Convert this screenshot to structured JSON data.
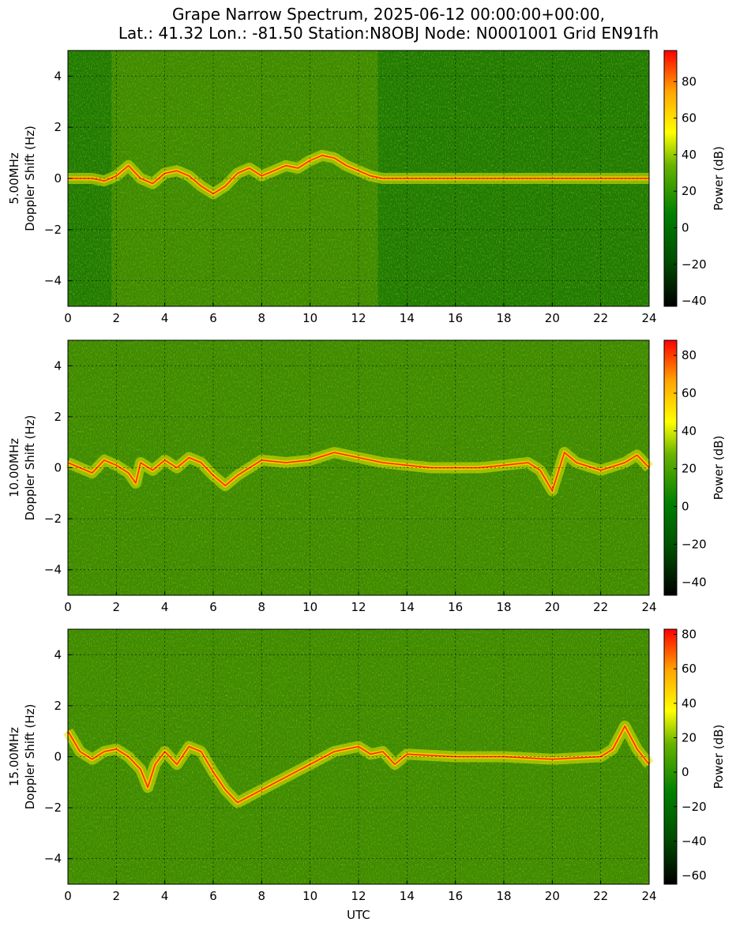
{
  "chart_data": {
    "type": "heatmap",
    "title_line1": "Grape Narrow Spectrum, 2025-06-12 00:00:00+00:00,",
    "title_line2": "Lat.: 41.32 Lon.: -81.50 Station:N8OBJ Node: N0001001 Grid EN91fh",
    "xlabel": "UTC",
    "xlim": [
      0,
      24
    ],
    "ylim": [
      -5,
      5
    ],
    "x_ticks": [
      0,
      2,
      4,
      6,
      8,
      10,
      12,
      14,
      16,
      18,
      20,
      22,
      24
    ],
    "y_ticks": [
      -4,
      -2,
      0,
      2,
      4
    ],
    "grid": true,
    "colormap": {
      "name": "black-green-yellow-red",
      "stops": [
        "#000000",
        "#006400",
        "#008000",
        "#9acd32",
        "#ffff00",
        "#ffa500",
        "#ff0000"
      ]
    },
    "colorbar_label": "Power (dB)",
    "panels": [
      {
        "ylabel_line1": "5.00MHz",
        "ylabel_line2": "Doppler Shift (Hz)",
        "colorbar_range": [
          -43,
          97
        ],
        "colorbar_ticks": [
          -40,
          -20,
          0,
          20,
          40,
          60,
          80
        ],
        "trace": [
          [
            0,
            0
          ],
          [
            1,
            0
          ],
          [
            1.5,
            -0.1
          ],
          [
            2,
            0.1
          ],
          [
            2.5,
            0.5
          ],
          [
            3,
            0
          ],
          [
            3.5,
            -0.2
          ],
          [
            4,
            0.2
          ],
          [
            4.5,
            0.3
          ],
          [
            5,
            0.1
          ],
          [
            5.5,
            -0.3
          ],
          [
            6,
            -0.6
          ],
          [
            6.5,
            -0.3
          ],
          [
            7,
            0.2
          ],
          [
            7.5,
            0.4
          ],
          [
            8,
            0.1
          ],
          [
            8.5,
            0.3
          ],
          [
            9,
            0.5
          ],
          [
            9.5,
            0.4
          ],
          [
            10,
            0.7
          ],
          [
            10.5,
            0.9
          ],
          [
            11,
            0.8
          ],
          [
            11.5,
            0.5
          ],
          [
            12,
            0.3
          ],
          [
            12.5,
            0.1
          ],
          [
            13,
            0
          ],
          [
            24,
            0
          ]
        ],
        "active_band": [
          1.8,
          12.8
        ]
      },
      {
        "ylabel_line1": "10.00MHz",
        "ylabel_line2": "Doppler Shift (Hz)",
        "colorbar_range": [
          -47,
          88
        ],
        "colorbar_ticks": [
          -40,
          -20,
          0,
          20,
          40,
          60,
          80
        ],
        "trace": [
          [
            0,
            0.2
          ],
          [
            0.5,
            0
          ],
          [
            1,
            -0.2
          ],
          [
            1.5,
            0.3
          ],
          [
            2,
            0.1
          ],
          [
            2.5,
            -0.2
          ],
          [
            2.8,
            -0.6
          ],
          [
            3,
            0.2
          ],
          [
            3.5,
            -0.1
          ],
          [
            4,
            0.3
          ],
          [
            4.5,
            0
          ],
          [
            5,
            0.4
          ],
          [
            5.5,
            0.2
          ],
          [
            6,
            -0.3
          ],
          [
            6.5,
            -0.7
          ],
          [
            7,
            -0.3
          ],
          [
            8,
            0.3
          ],
          [
            9,
            0.2
          ],
          [
            10,
            0.3
          ],
          [
            11,
            0.6
          ],
          [
            12,
            0.4
          ],
          [
            13,
            0.2
          ],
          [
            14,
            0.1
          ],
          [
            15,
            0
          ],
          [
            17,
            0
          ],
          [
            18,
            0.1
          ],
          [
            19,
            0.2
          ],
          [
            19.5,
            -0.1
          ],
          [
            20,
            -0.9
          ],
          [
            20.5,
            0.6
          ],
          [
            21,
            0.2
          ],
          [
            22,
            -0.1
          ],
          [
            23,
            0.2
          ],
          [
            23.5,
            0.5
          ],
          [
            24,
            0
          ]
        ],
        "active_band": [
          0,
          24
        ]
      },
      {
        "ylabel_line1": "15.00MHz",
        "ylabel_line2": "Doppler Shift (Hz)",
        "colorbar_range": [
          -65,
          83
        ],
        "colorbar_ticks": [
          -60,
          -40,
          -20,
          0,
          20,
          40,
          60,
          80
        ],
        "trace": [
          [
            0,
            1
          ],
          [
            0.5,
            0.2
          ],
          [
            1,
            -0.1
          ],
          [
            1.5,
            0.2
          ],
          [
            2,
            0.3
          ],
          [
            2.5,
            0
          ],
          [
            3,
            -0.5
          ],
          [
            3.3,
            -1.2
          ],
          [
            3.6,
            -0.3
          ],
          [
            4,
            0.2
          ],
          [
            4.5,
            -0.3
          ],
          [
            5,
            0.4
          ],
          [
            5.5,
            0.2
          ],
          [
            6,
            -0.6
          ],
          [
            6.5,
            -1.3
          ],
          [
            7,
            -1.8
          ],
          [
            11,
            0.2
          ],
          [
            12,
            0.4
          ],
          [
            12.5,
            0.1
          ],
          [
            13,
            0.2
          ],
          [
            13.5,
            -0.3
          ],
          [
            14,
            0.1
          ],
          [
            16,
            0
          ],
          [
            18,
            0
          ],
          [
            20,
            -0.1
          ],
          [
            22,
            0
          ],
          [
            22.5,
            0.3
          ],
          [
            23,
            1.2
          ],
          [
            23.5,
            0.3
          ],
          [
            24,
            -0.3
          ]
        ],
        "active_band": [
          0,
          24
        ]
      }
    ]
  }
}
